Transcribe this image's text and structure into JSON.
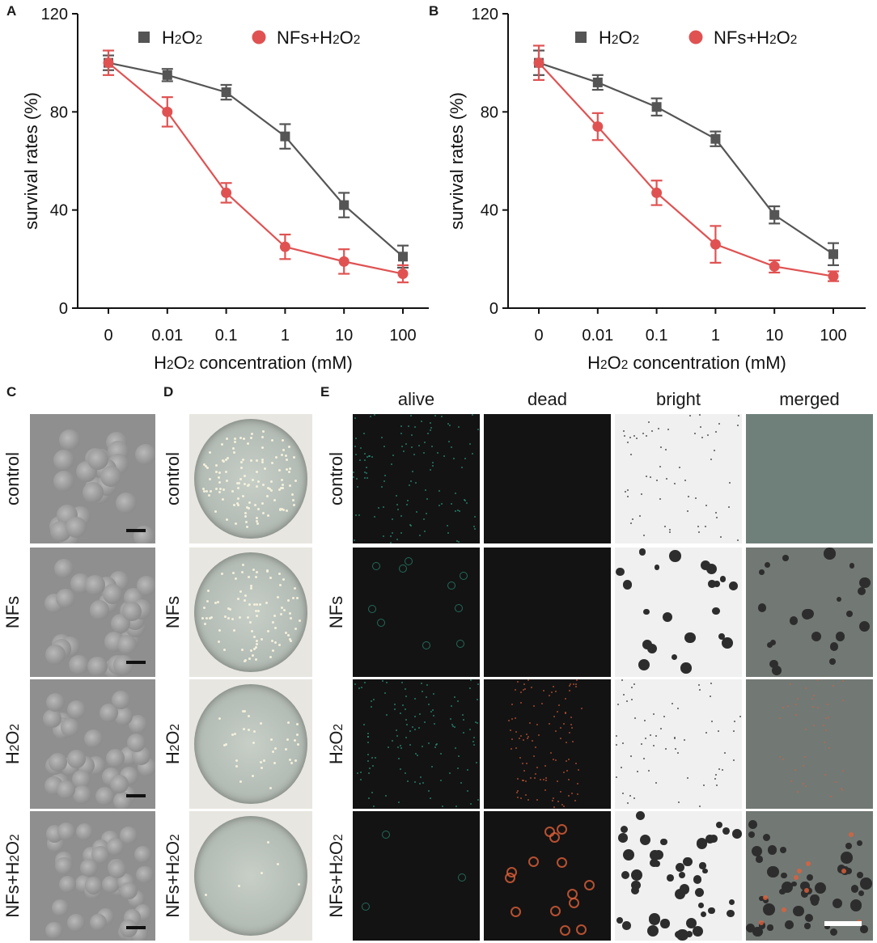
{
  "panels": {
    "A": "A",
    "B": "B",
    "C": "C",
    "D": "D",
    "E": "E"
  },
  "chart_data": [
    {
      "type": "line",
      "panel": "A",
      "xlabel_parts": [
        "H",
        "2",
        "O",
        "2",
        " concentration (mM)"
      ],
      "ylabel": "survival rates (%)",
      "categories": [
        "0",
        "0.01",
        "0.1",
        "1",
        "10",
        "100"
      ],
      "ylim": [
        0,
        120
      ],
      "yticks": [
        "0",
        "40",
        "80",
        "120"
      ],
      "legend_position": "top",
      "series": [
        {
          "name_parts": [
            "H",
            "2",
            "O",
            "2"
          ],
          "marker": "square",
          "color": "#555555",
          "values": [
            100,
            95,
            88,
            70,
            42,
            21
          ],
          "errors": [
            3,
            2.5,
            3,
            5,
            5,
            4.5
          ]
        },
        {
          "name_parts": [
            "NFs+H",
            "2",
            "O",
            "2"
          ],
          "marker": "circle",
          "color": "#e05252",
          "values": [
            100,
            80,
            47,
            25,
            19,
            14
          ],
          "errors": [
            5,
            6,
            4,
            5,
            5,
            3.5
          ]
        }
      ]
    },
    {
      "type": "line",
      "panel": "B",
      "xlabel_parts": [
        "H",
        "2",
        "O",
        "2",
        " concentration (mM)"
      ],
      "ylabel": "survival rates (%)",
      "categories": [
        "0",
        "0.01",
        "0.1",
        "1",
        "10",
        "100"
      ],
      "ylim": [
        0,
        120
      ],
      "yticks": [
        "0",
        "40",
        "80",
        "120"
      ],
      "legend_position": "top",
      "series": [
        {
          "name_parts": [
            "H",
            "2",
            "O",
            "2"
          ],
          "marker": "square",
          "color": "#555555",
          "values": [
            100,
            92,
            82,
            69,
            38,
            22
          ],
          "errors": [
            5,
            3,
            3.5,
            3,
            3.5,
            4.5
          ]
        },
        {
          "name_parts": [
            "NFs+H",
            "2",
            "O",
            "2"
          ],
          "marker": "circle",
          "color": "#e05252",
          "values": [
            100,
            74,
            47,
            26,
            17,
            13
          ],
          "errors": [
            7,
            5.5,
            5,
            7.5,
            2.5,
            2
          ]
        }
      ]
    }
  ],
  "rows": [
    "control",
    "NFs",
    "H2O2",
    "NFs+H2O2"
  ],
  "row_label_parts": [
    [
      "control"
    ],
    [
      "NFs"
    ],
    [
      "H",
      "2",
      "O",
      "2"
    ],
    [
      "NFs+H",
      "2",
      "O",
      "2"
    ]
  ],
  "columns_E": [
    "alive",
    "dead",
    "bright",
    "merged"
  ],
  "colors": {
    "h2o2_series": "#555555",
    "nfs_h2o2_series": "#e05252",
    "alive_fluorescence": "#2fa58a",
    "dead_fluorescence": "#e0603a"
  }
}
